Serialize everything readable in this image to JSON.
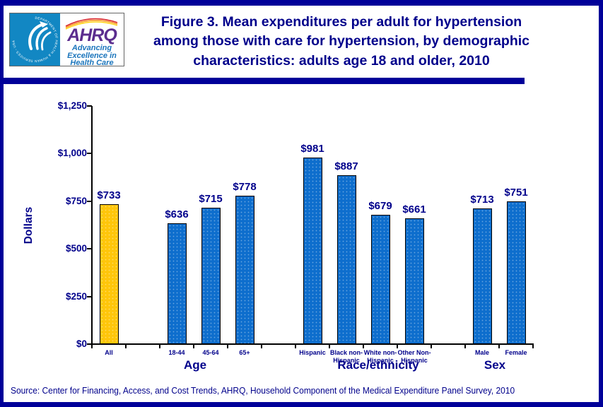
{
  "header": {
    "logo": {
      "hhs_circle_text": "DEPARTMENT OF HEALTH & HUMAN SERVICES - USA",
      "acronym": "AHRQ",
      "tagline_lines": [
        "Advancing",
        "Excellence in",
        "Health Care"
      ]
    }
  },
  "chart_data": {
    "type": "bar",
    "title": "Figure 3. Mean expenditures per adult for hypertension among those with care for hypertension, by demographic characteristics: adults age 18 and older, 2010",
    "ylabel": "Dollars",
    "xlabel": "",
    "ylim": [
      0,
      1250
    ],
    "ytick_interval": 250,
    "ytick_labels": [
      "$0",
      "$250",
      "$500",
      "$750",
      "$1,000",
      "$1,250"
    ],
    "grid": false,
    "legend": false,
    "bar_color_default": "#0e6ecd",
    "groups": [
      {
        "label": "",
        "categories": [
          "All"
        ],
        "values": [
          733
        ],
        "bar_color": "#ffc60a"
      },
      {
        "label": "Age",
        "categories": [
          "18-44",
          "45-64",
          "65+"
        ],
        "values": [
          636,
          715,
          778
        ]
      },
      {
        "label": "Race/ethnicity",
        "categories": [
          "Hispanic",
          "Black non-Hispanic",
          "White non-Hispanic",
          "Other Non-Hispanic"
        ],
        "values": [
          981,
          887,
          679,
          661
        ]
      },
      {
        "label": "Sex",
        "categories": [
          "Male",
          "Female"
        ],
        "values": [
          713,
          751
        ]
      }
    ],
    "value_labels": [
      "$733",
      "$636",
      "$715",
      "$778",
      "$981",
      "$887",
      "$679",
      "$661",
      "$713",
      "$751"
    ]
  },
  "source_note": "Source: Center for Financing, Access, and Cost Trends, AHRQ, Household Component of the Medical Expenditure Panel Survey, 2010",
  "colors": {
    "frame_navy": "#000099",
    "text_navy": "#00008B",
    "bar_blue": "#0e6ecd",
    "bar_gold": "#ffc60a",
    "hhs_teal": "#1287c3",
    "ahrq_purple": "#5b2d8e",
    "logo_blue": "#1b75bc"
  }
}
